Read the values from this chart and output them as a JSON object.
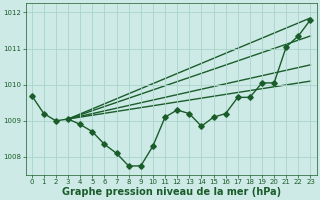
{
  "xlabel": "Graphe pression niveau de la mer (hPa)",
  "xlim": [
    -0.5,
    23.5
  ],
  "ylim": [
    1007.5,
    1012.25
  ],
  "yticks": [
    1008,
    1009,
    1010,
    1011,
    1012
  ],
  "xticks": [
    0,
    1,
    2,
    3,
    4,
    5,
    6,
    7,
    8,
    9,
    10,
    11,
    12,
    13,
    14,
    15,
    16,
    17,
    18,
    19,
    20,
    21,
    22,
    23
  ],
  "bg_color": "#ceeae6",
  "grid_color": "#aad4cc",
  "line_color": "#1a5c2a",
  "series_main": {
    "x": [
      0,
      1,
      2,
      3,
      4,
      5,
      6,
      7,
      8,
      9,
      10,
      11,
      12,
      13,
      14,
      15,
      16,
      17,
      18,
      19,
      20,
      21,
      22,
      23
    ],
    "y": [
      1009.7,
      1009.2,
      1009.0,
      1009.05,
      1008.9,
      1008.7,
      1008.35,
      1008.1,
      1007.75,
      1007.75,
      1008.3,
      1009.1,
      1009.3,
      1009.2,
      1008.85,
      1009.1,
      1009.2,
      1009.65,
      1009.65,
      1010.05,
      1010.05,
      1011.05,
      1011.35,
      1011.8
    ]
  },
  "straight_lines": [
    {
      "x0": 3,
      "y0": 1009.05,
      "x1": 23,
      "y1": 1011.85
    },
    {
      "x0": 3,
      "y0": 1009.05,
      "x1": 23,
      "y1": 1011.35
    },
    {
      "x0": 3,
      "y0": 1009.05,
      "x1": 23,
      "y1": 1010.55
    },
    {
      "x0": 3,
      "y0": 1009.05,
      "x1": 23,
      "y1": 1010.1
    }
  ],
  "font_color": "#1a5c2a",
  "tick_fontsize": 5.0,
  "label_fontsize": 7.0,
  "markersize": 2.8,
  "linewidth": 1.0
}
